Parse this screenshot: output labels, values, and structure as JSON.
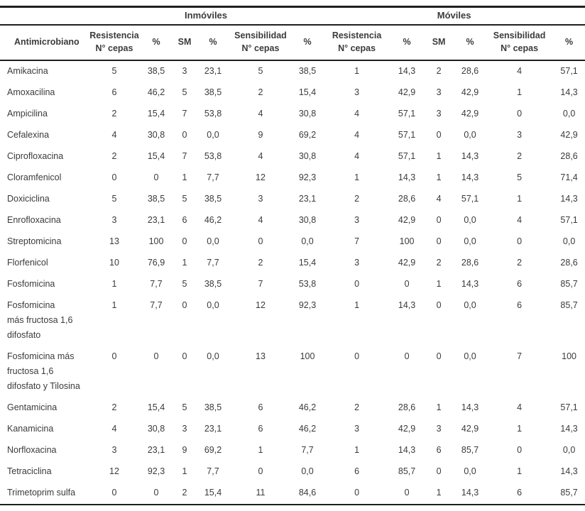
{
  "table": {
    "group_headers": [
      "Inmóviles",
      "Móviles"
    ],
    "columns": [
      {
        "label": "Antimicrobiano",
        "sub": ""
      },
      {
        "label": "Resistencia",
        "sub": "N° cepas"
      },
      {
        "label": "%",
        "sub": ""
      },
      {
        "label": "SM",
        "sub": ""
      },
      {
        "label": "%",
        "sub": ""
      },
      {
        "label": "Sensibilidad",
        "sub": "N° cepas"
      },
      {
        "label": "%",
        "sub": ""
      },
      {
        "label": "Resistencia",
        "sub": "N° cepas"
      },
      {
        "label": "%",
        "sub": ""
      },
      {
        "label": "SM",
        "sub": ""
      },
      {
        "label": "%",
        "sub": ""
      },
      {
        "label": "Sensibilidad",
        "sub": "N° cepas"
      },
      {
        "label": "%",
        "sub": ""
      }
    ],
    "rows": [
      {
        "name_lines": [
          "Amikacina"
        ],
        "values": [
          "5",
          "38,5",
          "3",
          "23,1",
          "5",
          "38,5",
          "1",
          "14,3",
          "2",
          "28,6",
          "4",
          "57,1"
        ]
      },
      {
        "name_lines": [
          "Amoxacilina"
        ],
        "values": [
          "6",
          "46,2",
          "5",
          "38,5",
          "2",
          "15,4",
          "3",
          "42,9",
          "3",
          "42,9",
          "1",
          "14,3"
        ]
      },
      {
        "name_lines": [
          "Ampicilina"
        ],
        "values": [
          "2",
          "15,4",
          "7",
          "53,8",
          "4",
          "30,8",
          "4",
          "57,1",
          "3",
          "42,9",
          "0",
          "0,0"
        ]
      },
      {
        "name_lines": [
          "Cefalexina"
        ],
        "values": [
          "4",
          "30,8",
          "0",
          "0,0",
          "9",
          "69,2",
          "4",
          "57,1",
          "0",
          "0,0",
          "3",
          "42,9"
        ]
      },
      {
        "name_lines": [
          "Ciprofloxacina"
        ],
        "values": [
          "2",
          "15,4",
          "7",
          "53,8",
          "4",
          "30,8",
          "4",
          "57,1",
          "1",
          "14,3",
          "2",
          "28,6"
        ]
      },
      {
        "name_lines": [
          "Cloramfenicol"
        ],
        "values": [
          "0",
          "0",
          "1",
          "7,7",
          "12",
          "92,3",
          "1",
          "14,3",
          "1",
          "14,3",
          "5",
          "71,4"
        ]
      },
      {
        "name_lines": [
          "Doxiciclina"
        ],
        "values": [
          "5",
          "38,5",
          "5",
          "38,5",
          "3",
          "23,1",
          "2",
          "28,6",
          "4",
          "57,1",
          "1",
          "14,3"
        ]
      },
      {
        "name_lines": [
          "Enrofloxacina"
        ],
        "values": [
          "3",
          "23,1",
          "6",
          "46,2",
          "4",
          "30,8",
          "3",
          "42,9",
          "0",
          "0,0",
          "4",
          "57,1"
        ]
      },
      {
        "name_lines": [
          "Streptomicina"
        ],
        "values": [
          "13",
          "100",
          "0",
          "0,0",
          "0",
          "0,0",
          "7",
          "100",
          "0",
          "0,0",
          "0",
          "0,0"
        ]
      },
      {
        "name_lines": [
          "Florfenicol"
        ],
        "values": [
          "10",
          "76,9",
          "1",
          "7,7",
          "2",
          "15,4",
          "3",
          "42,9",
          "2",
          "28,6",
          "2",
          "28,6"
        ]
      },
      {
        "name_lines": [
          "Fosfomicina"
        ],
        "values": [
          "1",
          "7,7",
          "5",
          "38,5",
          "7",
          "53,8",
          "0",
          "0",
          "1",
          "14,3",
          "6",
          "85,7"
        ]
      },
      {
        "name_lines": [
          "Fosfomicina",
          "más fructosa 1,6",
          "difosfato"
        ],
        "values": [
          "1",
          "7,7",
          "0",
          "0,0",
          "12",
          "92,3",
          "1",
          "14,3",
          "0",
          "0,0",
          "6",
          "85,7"
        ]
      },
      {
        "name_lines": [
          "Fosfomicina más",
          "fructosa 1,6",
          "difosfato y Tilosina"
        ],
        "values": [
          "0",
          "0",
          "0",
          "0,0",
          "13",
          "100",
          "0",
          "0",
          "0",
          "0,0",
          "7",
          "100"
        ]
      },
      {
        "name_lines": [
          "Gentamicina"
        ],
        "values": [
          "2",
          "15,4",
          "5",
          "38,5",
          "6",
          "46,2",
          "2",
          "28,6",
          "1",
          "14,3",
          "4",
          "57,1"
        ]
      },
      {
        "name_lines": [
          "Kanamicina"
        ],
        "values": [
          "4",
          "30,8",
          "3",
          "23,1",
          "6",
          "46,2",
          "3",
          "42,9",
          "3",
          "42,9",
          "1",
          "14,3"
        ]
      },
      {
        "name_lines": [
          "Norfloxacina"
        ],
        "values": [
          "3",
          "23,1",
          "9",
          "69,2",
          "1",
          "7,7",
          "1",
          "14,3",
          "6",
          "85,7",
          "0",
          "0,0"
        ]
      },
      {
        "name_lines": [
          "Tetraciclina"
        ],
        "values": [
          "12",
          "92,3",
          "1",
          "7,7",
          "0",
          "0,0",
          "6",
          "85,7",
          "0",
          "0,0",
          "1",
          "14,3"
        ]
      },
      {
        "name_lines": [
          "Trimetoprim sulfa"
        ],
        "values": [
          "0",
          "0",
          "2",
          "15,4",
          "11",
          "84,6",
          "0",
          "0",
          "1",
          "14,3",
          "6",
          "85,7"
        ]
      }
    ]
  }
}
